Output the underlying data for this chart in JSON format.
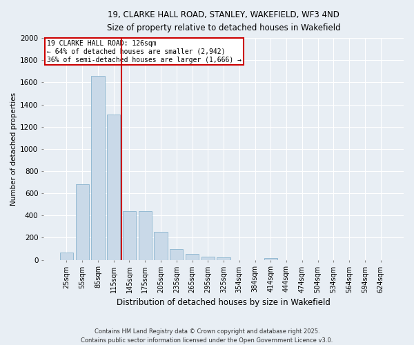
{
  "title": "19, CLARKE HALL ROAD, STANLEY, WAKEFIELD, WF3 4ND",
  "subtitle": "Size of property relative to detached houses in Wakefield",
  "xlabel": "Distribution of detached houses by size in Wakefield",
  "ylabel": "Number of detached properties",
  "property_label": "19 CLARKE HALL ROAD: 126sqm",
  "annotation_line1": "← 64% of detached houses are smaller (2,942)",
  "annotation_line2": "36% of semi-detached houses are larger (1,666) →",
  "bar_color": "#c9d9e8",
  "bar_edge_color": "#7aaac8",
  "vline_color": "#cc0000",
  "annotation_box_color": "#cc0000",
  "bg_color": "#e8eef4",
  "grid_color": "#ffffff",
  "footer_line1": "Contains HM Land Registry data © Crown copyright and database right 2025.",
  "footer_line2": "Contains public sector information licensed under the Open Government Licence v3.0.",
  "categories": [
    "25sqm",
    "55sqm",
    "85sqm",
    "115sqm",
    "145sqm",
    "175sqm",
    "205sqm",
    "235sqm",
    "265sqm",
    "295sqm",
    "325sqm",
    "354sqm",
    "384sqm",
    "414sqm",
    "444sqm",
    "474sqm",
    "504sqm",
    "534sqm",
    "564sqm",
    "594sqm",
    "624sqm"
  ],
  "values": [
    65,
    680,
    1660,
    1310,
    440,
    440,
    250,
    100,
    55,
    30,
    25,
    0,
    0,
    15,
    0,
    0,
    0,
    0,
    0,
    0,
    0
  ],
  "vline_x_index": 3.5,
  "ylim": [
    0,
    2000
  ],
  "yticks": [
    0,
    200,
    400,
    600,
    800,
    1000,
    1200,
    1400,
    1600,
    1800,
    2000
  ]
}
